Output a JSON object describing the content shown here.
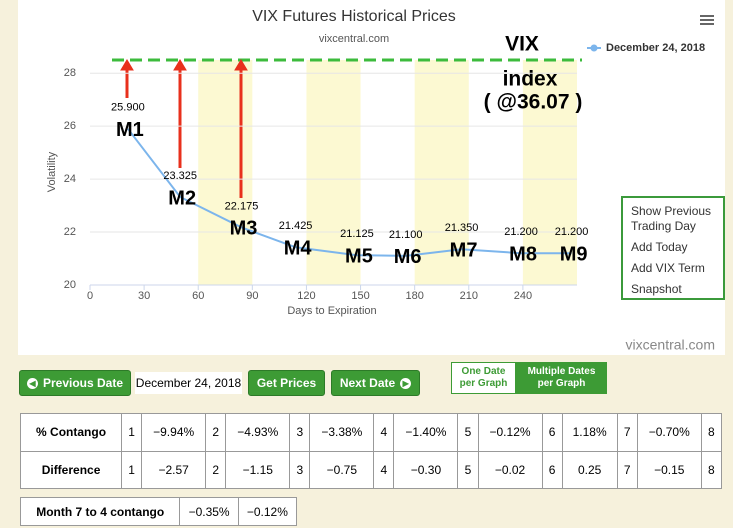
{
  "chart_data": {
    "type": "line",
    "title": "VIX Futures Historical Prices",
    "subtitle": "vixcentral.com",
    "x_label": "Days to Expiration",
    "y_label": "Volatility",
    "x": [
      21,
      50,
      84,
      114,
      148,
      175,
      206,
      239,
      267
    ],
    "series": [
      {
        "name": "December 24, 2018",
        "color": "#7cb5ec",
        "values": [
          25.9,
          23.325,
          22.175,
          21.425,
          21.125,
          21.1,
          21.35,
          21.2,
          21.2
        ],
        "value_labels": [
          "25.900",
          "23.325",
          "22.175",
          "21.425",
          "21.125",
          "21.100",
          "21.350",
          "21.200",
          "21.200"
        ]
      }
    ],
    "point_labels": [
      "M1",
      "M2",
      "M3",
      "M4",
      "M5",
      "M6",
      "M7",
      "M8",
      "M9"
    ],
    "annotation": [
      "VIX",
      "index",
      "( @36.07 )"
    ],
    "credit": "vixcentral.com",
    "xlim": [
      0,
      270
    ],
    "xticks": [
      0,
      30,
      60,
      90,
      120,
      150,
      180,
      210,
      240
    ],
    "ylim": [
      20,
      28.5
    ],
    "yticks": [
      20,
      22,
      24,
      26,
      28
    ],
    "grid": true,
    "legend": "top-right"
  },
  "menu": {
    "items": [
      "Show Previous Trading Day",
      "Add Today",
      "Add VIX Term",
      "Snapshot"
    ]
  },
  "controls": {
    "previous": "Previous Date",
    "date": "December 24, 2018",
    "get": "Get Prices",
    "next": "Next Date",
    "one_date": "One Date per Graph",
    "multiple_dates": "Multiple Dates per Graph"
  },
  "contango_table": {
    "rows": [
      [
        "% Contango",
        "1",
        "−9.94%",
        "2",
        "−4.93%",
        "3",
        "−3.38%",
        "4",
        "−1.40%",
        "5",
        "−0.12%",
        "6",
        "1.18%",
        "7",
        "−0.70%",
        "8"
      ],
      [
        "Difference",
        "1",
        "−2.57",
        "2",
        "−1.15",
        "3",
        "−0.75",
        "4",
        "−0.30",
        "5",
        "−0.02",
        "6",
        "0.25",
        "7",
        "−0.15",
        "8"
      ]
    ]
  },
  "summary_table": {
    "rows": [
      [
        "Month 7 to 4 contango",
        "−0.35%",
        "−0.12%"
      ]
    ]
  }
}
